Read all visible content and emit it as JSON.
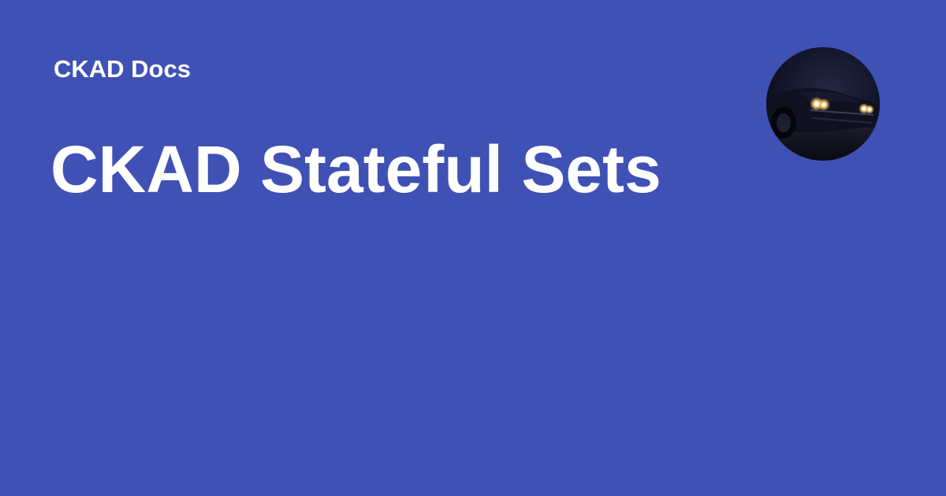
{
  "site": {
    "name": "CKAD Docs"
  },
  "page": {
    "title": "CKAD Stateful Sets"
  },
  "avatar": {
    "icon": "car-night-photo-icon"
  },
  "colors": {
    "background": "#3f51b5",
    "text": "#ffffff"
  }
}
